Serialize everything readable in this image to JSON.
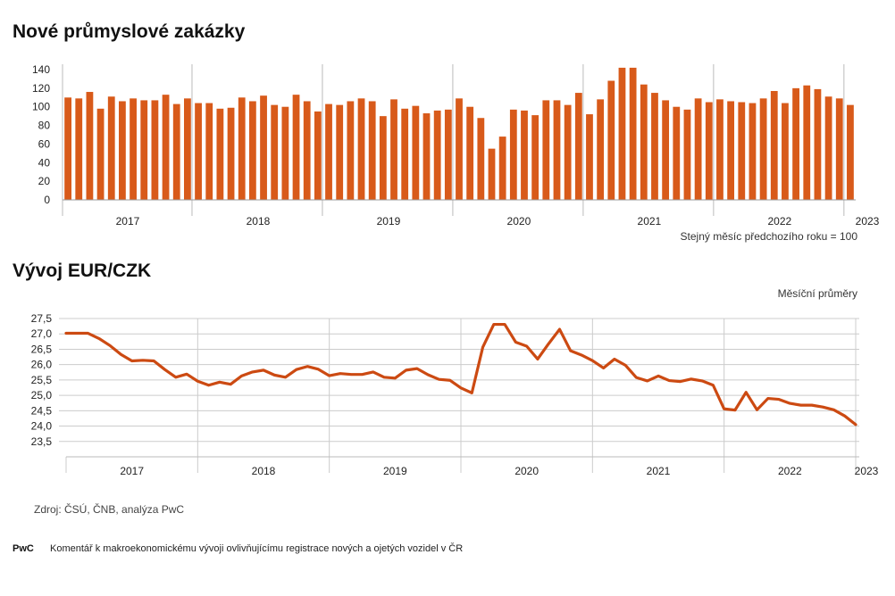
{
  "charts": {
    "orders_title": "Nové průmyslové zakázky",
    "orders_note": "Stejný měsíc předchozího roku = 100",
    "fx_title": "Vývoj EUR/CZK",
    "fx_note": "Měsíční průměry"
  },
  "source": "Zdroj: ČSÚ, ČNB, analýza PwC",
  "footer": {
    "brand": "PwC",
    "text": "Komentář k makroekonomickému vývoji ovlivňujícímu registrace nových a ojetých vozidel v ČR"
  },
  "colors": {
    "bar": "#d85a1a",
    "line": "#cc4a12",
    "grid": "#cccccc"
  },
  "chart_data": [
    {
      "type": "bar",
      "title": "Nové průmyslové zakázky",
      "ylabel": "Stejný měsíc předchozího roku = 100",
      "ylim": [
        0,
        140
      ],
      "yticks": [
        0,
        20,
        40,
        60,
        80,
        100,
        120,
        140
      ],
      "years": [
        "2017",
        "2018",
        "2019",
        "2020",
        "2021",
        "2022",
        "2023"
      ],
      "start": "2017-01",
      "values": [
        110,
        109,
        116,
        98,
        111,
        106,
        109,
        107,
        107,
        113,
        103,
        109,
        104,
        104,
        98,
        99,
        110,
        106,
        112,
        102,
        100,
        113,
        106,
        95,
        103,
        102,
        106,
        109,
        106,
        90,
        108,
        98,
        101,
        93,
        96,
        97,
        109,
        100,
        88,
        55,
        68,
        97,
        96,
        91,
        107,
        107,
        102,
        115,
        92,
        108,
        128,
        142,
        142,
        124,
        115,
        107,
        100,
        97,
        109,
        105,
        108,
        106,
        105,
        104,
        109,
        117,
        104,
        120,
        123,
        119,
        111,
        109,
        102
      ]
    },
    {
      "type": "line",
      "title": "Vývoj EUR/CZK",
      "ylabel": "Měsíční průměry",
      "ylim": [
        23.0,
        27.5
      ],
      "yticks": [
        "27,5",
        "27,0",
        "26,5",
        "26,0",
        "25,5",
        "25,0",
        "24,5",
        "24,0",
        "23,5"
      ],
      "years": [
        "2017",
        "2018",
        "2019",
        "2020",
        "2021",
        "2022",
        "2023"
      ],
      "start": "2017-01",
      "values": [
        27.02,
        27.02,
        27.02,
        26.85,
        26.62,
        26.33,
        26.12,
        26.14,
        26.12,
        25.84,
        25.59,
        25.69,
        25.46,
        25.33,
        25.43,
        25.36,
        25.63,
        25.76,
        25.82,
        25.66,
        25.59,
        25.84,
        25.94,
        25.85,
        25.64,
        25.71,
        25.68,
        25.68,
        25.76,
        25.59,
        25.56,
        25.82,
        25.87,
        25.67,
        25.52,
        25.49,
        25.24,
        25.08,
        26.57,
        27.31,
        27.31,
        26.73,
        26.6,
        26.18,
        26.68,
        27.15,
        26.45,
        26.31,
        26.13,
        25.89,
        26.18,
        25.98,
        25.58,
        25.47,
        25.63,
        25.48,
        25.45,
        25.53,
        25.47,
        25.33,
        24.56,
        24.52,
        25.1,
        24.53,
        24.9,
        24.87,
        24.74,
        24.68,
        24.68,
        24.62,
        24.53,
        24.33,
        24.05
      ]
    }
  ]
}
